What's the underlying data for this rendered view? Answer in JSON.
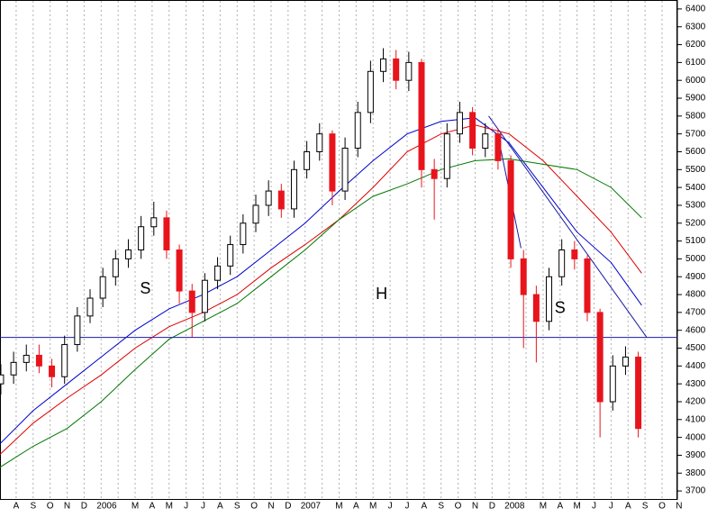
{
  "chart_data": {
    "type": "candlestick",
    "categories": [
      "A",
      "S",
      "O",
      "N",
      "D",
      "2006",
      null,
      "M",
      "A",
      "M",
      "J",
      "J",
      "A",
      "S",
      "O",
      "N",
      "D",
      "2007",
      null,
      "M",
      "A",
      "M",
      "J",
      "J",
      "A",
      "S",
      "O",
      "N",
      "D",
      "2008",
      null,
      "M",
      "A",
      "M",
      "J",
      "J",
      "A",
      "S",
      "O",
      "N"
    ],
    "xticks": [
      0,
      1,
      2,
      3,
      4,
      5,
      6,
      7,
      8,
      9,
      10,
      11,
      12,
      13,
      14,
      15,
      16,
      17,
      18,
      19,
      20,
      21,
      22,
      23,
      24,
      25,
      26,
      27,
      28,
      29,
      30,
      31,
      32,
      33,
      34,
      35,
      36,
      37,
      38,
      39
    ],
    "xlim": [
      -0.95,
      38.9
    ],
    "ylim": [
      3650,
      6450
    ],
    "yticks": [
      3700,
      3800,
      3900,
      4000,
      4100,
      4200,
      4300,
      4400,
      4500,
      4600,
      4700,
      4800,
      4900,
      5000,
      5100,
      5200,
      5300,
      5400,
      5500,
      5600,
      5700,
      5800,
      5900,
      6000,
      6100,
      6200,
      6300,
      6400
    ],
    "grid": true,
    "up_color": "#ffffff",
    "down_color": "#e8141c",
    "candles": {
      "x": [
        -0.9,
        -0.15,
        0.6,
        1.35,
        2.1,
        2.85,
        3.6,
        4.35,
        5.1,
        5.85,
        6.6,
        7.35,
        8.1,
        8.85,
        9.6,
        10.35,
        11.1,
        11.85,
        12.6,
        13.35,
        14.1,
        14.85,
        15.6,
        16.35,
        17.1,
        17.85,
        18.6,
        19.35,
        20.1,
        20.85,
        21.6,
        22.35,
        23.1,
        23.85,
        24.6,
        25.35,
        26.1,
        26.85,
        27.6,
        28.35,
        29.1,
        29.85,
        30.6,
        31.35,
        32.1,
        32.85,
        33.6,
        34.35,
        35.1,
        35.85,
        36.6
      ],
      "open": [
        4300,
        4350,
        4420,
        4460,
        4400,
        4340,
        4520,
        4680,
        4780,
        4900,
        5000,
        5050,
        5180,
        5230,
        5050,
        4820,
        4700,
        4880,
        4960,
        5080,
        5200,
        5300,
        5380,
        5280,
        5500,
        5600,
        5700,
        5380,
        5620,
        5820,
        6050,
        6120,
        6000,
        6100,
        5500,
        5450,
        5700,
        5820,
        5620,
        5700,
        5550,
        5000,
        4800,
        4650,
        4900,
        5050,
        5000,
        4700,
        4200,
        4400,
        4450
      ],
      "high": [
        4410,
        4480,
        4520,
        4520,
        4440,
        4570,
        4730,
        4830,
        4950,
        5050,
        5110,
        5240,
        5320,
        5270,
        5080,
        4860,
        4920,
        5010,
        5130,
        5250,
        5360,
        5440,
        5420,
        5550,
        5660,
        5760,
        5720,
        5680,
        5880,
        6110,
        6180,
        6170,
        6160,
        6120,
        5560,
        5760,
        5880,
        5850,
        5760,
        5730,
        5580,
        5050,
        4850,
        4950,
        5110,
        5100,
        5020,
        4720,
        4460,
        4510,
        4480
      ],
      "low": [
        4240,
        4300,
        4370,
        4360,
        4280,
        4300,
        4480,
        4640,
        4730,
        4850,
        4950,
        5000,
        5130,
        5000,
        4750,
        4560,
        4650,
        4830,
        4910,
        5030,
        5150,
        5240,
        5230,
        5230,
        5450,
        5550,
        5300,
        5330,
        5570,
        5760,
        5990,
        5950,
        5940,
        5400,
        5220,
        5400,
        5650,
        5580,
        5570,
        5500,
        4950,
        4500,
        4420,
        4600,
        4850,
        4940,
        4650,
        4000,
        4150,
        4350,
        4000
      ],
      "close": [
        4350,
        4420,
        4460,
        4400,
        4340,
        4520,
        4680,
        4780,
        4900,
        5000,
        5050,
        5180,
        5230,
        5050,
        4820,
        4700,
        4880,
        4960,
        5080,
        5200,
        5300,
        5380,
        5280,
        5500,
        5600,
        5700,
        5380,
        5620,
        5820,
        6050,
        6120,
        6000,
        6100,
        5500,
        5450,
        5700,
        5820,
        5620,
        5700,
        5550,
        5000,
        4800,
        4650,
        4900,
        5050,
        5000,
        4700,
        4200,
        4400,
        4450,
        4050
      ]
    },
    "overlays": [
      {
        "color": "#0000cc",
        "x": [
          -1,
          1,
          3,
          5,
          7,
          9,
          11,
          13,
          15,
          17,
          19,
          21,
          23,
          25,
          27,
          29,
          31,
          33,
          35,
          36.8
        ],
        "values": [
          3960,
          4150,
          4300,
          4450,
          4600,
          4720,
          4800,
          4900,
          5050,
          5200,
          5380,
          5550,
          5700,
          5770,
          5790,
          5650,
          5400,
          5150,
          4980,
          4740
        ]
      },
      {
        "color": "#dd0000",
        "x": [
          -1,
          1,
          3,
          5,
          7,
          9,
          11,
          13,
          15,
          17,
          19,
          21,
          23,
          25,
          27,
          29,
          31,
          33,
          35,
          36.8
        ],
        "values": [
          3900,
          4080,
          4220,
          4350,
          4500,
          4620,
          4700,
          4800,
          4950,
          5080,
          5220,
          5400,
          5600,
          5700,
          5750,
          5700,
          5550,
          5350,
          5150,
          4920
        ]
      },
      {
        "color": "#007700",
        "x": [
          -1,
          1,
          3,
          5,
          7,
          9,
          11,
          13,
          15,
          17,
          19,
          21,
          23,
          25,
          27,
          29,
          31,
          33,
          35,
          36.8
        ],
        "values": [
          3830,
          3950,
          4050,
          4200,
          4380,
          4550,
          4650,
          4750,
          4900,
          5050,
          5220,
          5350,
          5420,
          5500,
          5550,
          5560,
          5530,
          5500,
          5400,
          5230
        ]
      }
    ],
    "trendlines": [
      {
        "color": "#1a1aa8",
        "x": [
          -0.95,
          38.9
        ],
        "values": [
          4560,
          4560
        ]
      },
      {
        "color": "#1a1aa8",
        "x": [
          27.8,
          37.1
        ],
        "values": [
          5800,
          4560
        ]
      },
      {
        "color": "#1a1aa8",
        "x": [
          28.5,
          29.7
        ],
        "values": [
          5620,
          5060
        ]
      }
    ],
    "annotations": [
      {
        "text": "S",
        "x": 7.6,
        "y": 4830
      },
      {
        "text": "H",
        "x": 21.5,
        "y": 4800
      },
      {
        "text": "S",
        "x": 32,
        "y": 4720
      }
    ]
  }
}
